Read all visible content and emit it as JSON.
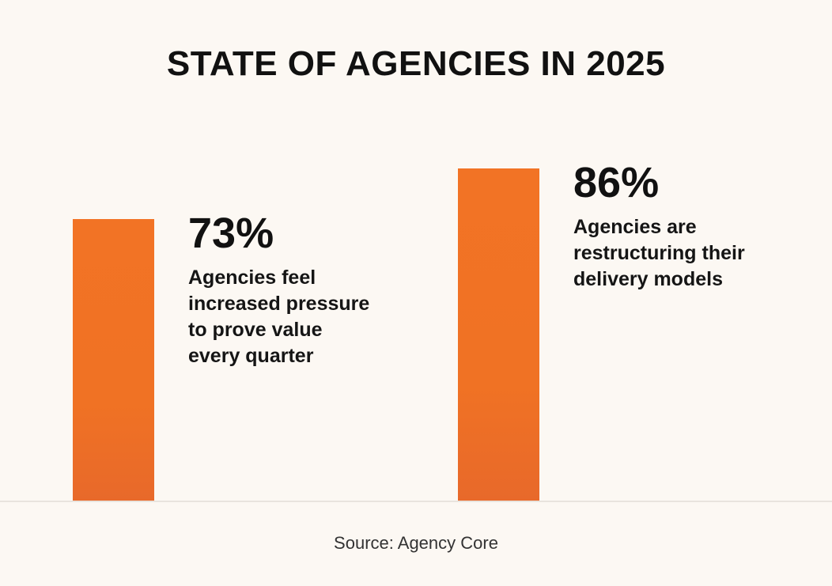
{
  "chart_data": {
    "type": "bar",
    "title": "STATE OF AGENCIES IN 2025",
    "categories": [
      "Agencies feel increased pressure to prove value every quarter",
      "Agencies are restructuring their delivery models"
    ],
    "values": [
      73,
      86
    ],
    "value_labels": [
      "73%",
      "86%"
    ],
    "descriptions": [
      [
        "Agencies feel",
        "increased pressure",
        "to prove value",
        "every quarter"
      ],
      [
        "Agencies are",
        "restructuring their",
        "delivery models"
      ]
    ],
    "ylim": [
      0,
      100
    ],
    "grid": false,
    "xlabel": "",
    "ylabel": "",
    "source": "Source: Agency Core",
    "colors": {
      "bar": "#f07224",
      "background": "#fcf8f3",
      "baseline": "#e9e4de"
    }
  }
}
